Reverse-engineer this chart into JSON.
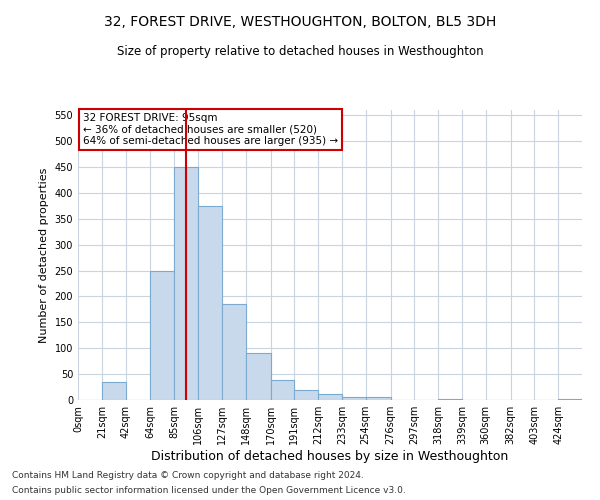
{
  "title": "32, FOREST DRIVE, WESTHOUGHTON, BOLTON, BL5 3DH",
  "subtitle": "Size of property relative to detached houses in Westhoughton",
  "xlabel": "Distribution of detached houses by size in Westhoughton",
  "ylabel": "Number of detached properties",
  "bin_edges": [
    0,
    21,
    42,
    64,
    85,
    106,
    127,
    148,
    170,
    191,
    212,
    233,
    254,
    276,
    297,
    318,
    339,
    360,
    382,
    403,
    424,
    445
  ],
  "bar_heights": [
    0,
    35,
    0,
    250,
    450,
    375,
    185,
    90,
    38,
    20,
    12,
    5,
    6,
    0,
    0,
    2,
    0,
    0,
    0,
    0,
    2
  ],
  "bar_color": "#c9d9ec",
  "bar_edgecolor": "#7aaacf",
  "property_size": 95,
  "vline_color": "#cc0000",
  "annotation_line1": "32 FOREST DRIVE: 95sqm",
  "annotation_line2": "← 36% of detached houses are smaller (520)",
  "annotation_line3": "64% of semi-detached houses are larger (935) →",
  "annotation_box_color": "#ffffff",
  "annotation_box_edgecolor": "#cc0000",
  "ylim": [
    0,
    560
  ],
  "yticks": [
    0,
    50,
    100,
    150,
    200,
    250,
    300,
    350,
    400,
    450,
    500,
    550
  ],
  "tick_labels": [
    "0sqm",
    "21sqm",
    "42sqm",
    "64sqm",
    "85sqm",
    "106sqm",
    "127sqm",
    "148sqm",
    "170sqm",
    "191sqm",
    "212sqm",
    "233sqm",
    "254sqm",
    "276sqm",
    "297sqm",
    "318sqm",
    "339sqm",
    "360sqm",
    "382sqm",
    "403sqm",
    "424sqm"
  ],
  "footer_line1": "Contains HM Land Registry data © Crown copyright and database right 2024.",
  "footer_line2": "Contains public sector information licensed under the Open Government Licence v3.0.",
  "background_color": "#ffffff",
  "grid_color": "#c8d4e0",
  "title_fontsize": 10,
  "subtitle_fontsize": 8.5,
  "ylabel_fontsize": 8,
  "xlabel_fontsize": 9,
  "tick_fontsize": 7,
  "footer_fontsize": 6.5
}
